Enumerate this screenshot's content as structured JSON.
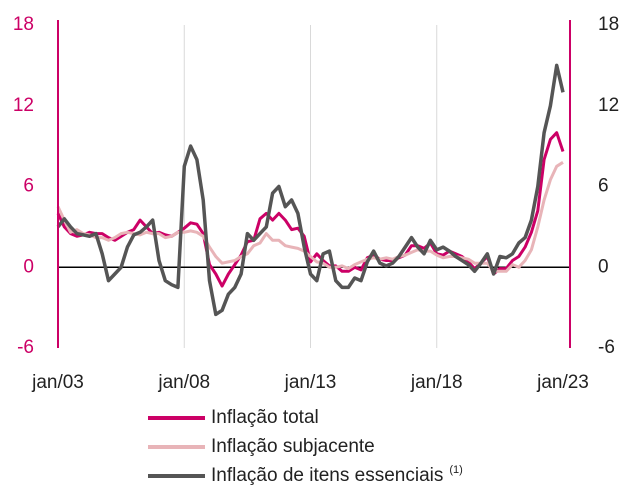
{
  "chart_data": {
    "type": "line",
    "x": [
      "jan/03",
      "abr/03",
      "jul/03",
      "out/03",
      "jan/04",
      "abr/04",
      "jul/04",
      "out/04",
      "jan/05",
      "abr/05",
      "jul/05",
      "out/05",
      "jan/06",
      "abr/06",
      "jul/06",
      "out/06",
      "jan/07",
      "abr/07",
      "jul/07",
      "out/07",
      "jan/08",
      "abr/08",
      "jul/08",
      "out/08",
      "jan/09",
      "abr/09",
      "jul/09",
      "out/09",
      "jan/10",
      "abr/10",
      "jul/10",
      "out/10",
      "jan/11",
      "abr/11",
      "jul/11",
      "out/11",
      "jan/12",
      "abr/12",
      "jul/12",
      "out/12",
      "jan/13",
      "abr/13",
      "jul/13",
      "out/13",
      "jan/14",
      "abr/14",
      "jul/14",
      "out/14",
      "jan/15",
      "abr/15",
      "jul/15",
      "out/15",
      "jan/16",
      "abr/16",
      "jul/16",
      "out/16",
      "jan/17",
      "abr/17",
      "jul/17",
      "out/17",
      "jan/18",
      "abr/18",
      "jul/18",
      "out/18",
      "jan/19",
      "abr/19",
      "jul/19",
      "out/19",
      "jan/20",
      "abr/20",
      "jul/20",
      "out/20",
      "jan/21",
      "abr/21",
      "jul/21",
      "out/21",
      "jan/22",
      "abr/22",
      "jul/22",
      "out/22",
      "jan/23"
    ],
    "xticks": [
      "jan/03",
      "jan/08",
      "jan/13",
      "jan/18",
      "jan/23"
    ],
    "ylim": [
      -6,
      18
    ],
    "yticks": [
      -6,
      0,
      6,
      12,
      18
    ],
    "y2lim": [
      -6,
      18
    ],
    "y2ticks": [
      -6,
      0,
      6,
      12,
      18
    ],
    "series": [
      {
        "name": "Inflação total",
        "color": "#cc0066",
        "values": [
          4.0,
          3.0,
          2.5,
          2.3,
          2.4,
          2.6,
          2.5,
          2.5,
          2.2,
          2.0,
          2.3,
          2.6,
          2.8,
          3.5,
          3.0,
          2.5,
          2.6,
          2.4,
          2.3,
          2.6,
          2.9,
          3.3,
          3.2,
          2.5,
          0.2,
          -0.5,
          -1.4,
          -0.5,
          0.2,
          0.9,
          1.9,
          2.0,
          3.6,
          4.0,
          3.5,
          4.0,
          3.5,
          2.8,
          2.9,
          2.3,
          0.4,
          1.0,
          0.5,
          0.1,
          0.1,
          -0.3,
          -0.3,
          0.0,
          -0.2,
          0.7,
          0.9,
          0.6,
          0.5,
          0.5,
          0.7,
          0.9,
          1.6,
          1.6,
          1.4,
          1.8,
          1.0,
          0.9,
          1.2,
          1.0,
          0.8,
          0.4,
          -0.1,
          0.3,
          0.8,
          -0.5,
          -0.1,
          -0.1,
          0.5,
          0.8,
          1.5,
          2.6,
          4.2,
          8.0,
          9.5,
          10.0,
          8.6
        ]
      },
      {
        "name": "Inflação subjacente",
        "color": "#e8b4b8",
        "values": [
          4.5,
          3.5,
          2.6,
          2.8,
          2.5,
          2.4,
          2.2,
          2.2,
          2.0,
          2.2,
          2.5,
          2.6,
          2.5,
          2.4,
          2.6,
          2.5,
          2.5,
          2.2,
          2.3,
          2.6,
          2.6,
          2.7,
          2.6,
          2.3,
          1.5,
          0.8,
          0.3,
          0.4,
          0.5,
          0.8,
          1.0,
          1.6,
          1.8,
          2.5,
          2.0,
          2.0,
          1.6,
          1.5,
          1.4,
          1.2,
          0.8,
          0.4,
          0.3,
          0.0,
          0.0,
          0.1,
          -0.1,
          0.2,
          0.4,
          0.6,
          0.7,
          0.6,
          0.7,
          0.6,
          0.8,
          0.9,
          1.1,
          1.3,
          1.2,
          1.2,
          0.9,
          0.7,
          0.8,
          0.8,
          0.7,
          0.6,
          0.3,
          0.3,
          0.3,
          -0.3,
          -0.3,
          -0.3,
          0.2,
          0.0,
          0.5,
          1.3,
          3.0,
          5.0,
          6.5,
          7.5,
          7.8
        ]
      },
      {
        "name": "Inflação de itens essenciais",
        "color": "#555555",
        "values": [
          3.0,
          3.6,
          3.0,
          2.5,
          2.4,
          2.3,
          2.5,
          1.0,
          -1.0,
          -0.5,
          0.0,
          1.5,
          2.4,
          2.6,
          3.0,
          3.5,
          0.5,
          -1.0,
          -1.3,
          -1.5,
          7.5,
          9.0,
          8.0,
          5.0,
          -1.0,
          -3.5,
          -3.2,
          -2.0,
          -1.5,
          -0.5,
          2.5,
          2.0,
          2.5,
          3.0,
          5.5,
          6.0,
          4.5,
          5.0,
          4.0,
          1.5,
          -0.5,
          -1.0,
          1.0,
          1.2,
          -1.0,
          -1.5,
          -1.5,
          -0.8,
          -1.0,
          0.4,
          1.2,
          0.3,
          0.1,
          0.3,
          0.8,
          1.5,
          2.2,
          1.5,
          1.0,
          2.0,
          1.3,
          1.5,
          1.2,
          0.8,
          0.5,
          0.2,
          -0.3,
          0.3,
          1.0,
          -0.5,
          0.8,
          0.7,
          1.0,
          1.8,
          2.2,
          3.5,
          6.0,
          10.0,
          12.0,
          15.0,
          13.0
        ]
      }
    ],
    "legend_note": "(1)",
    "axis_color": "#cc0066",
    "grid": true
  }
}
